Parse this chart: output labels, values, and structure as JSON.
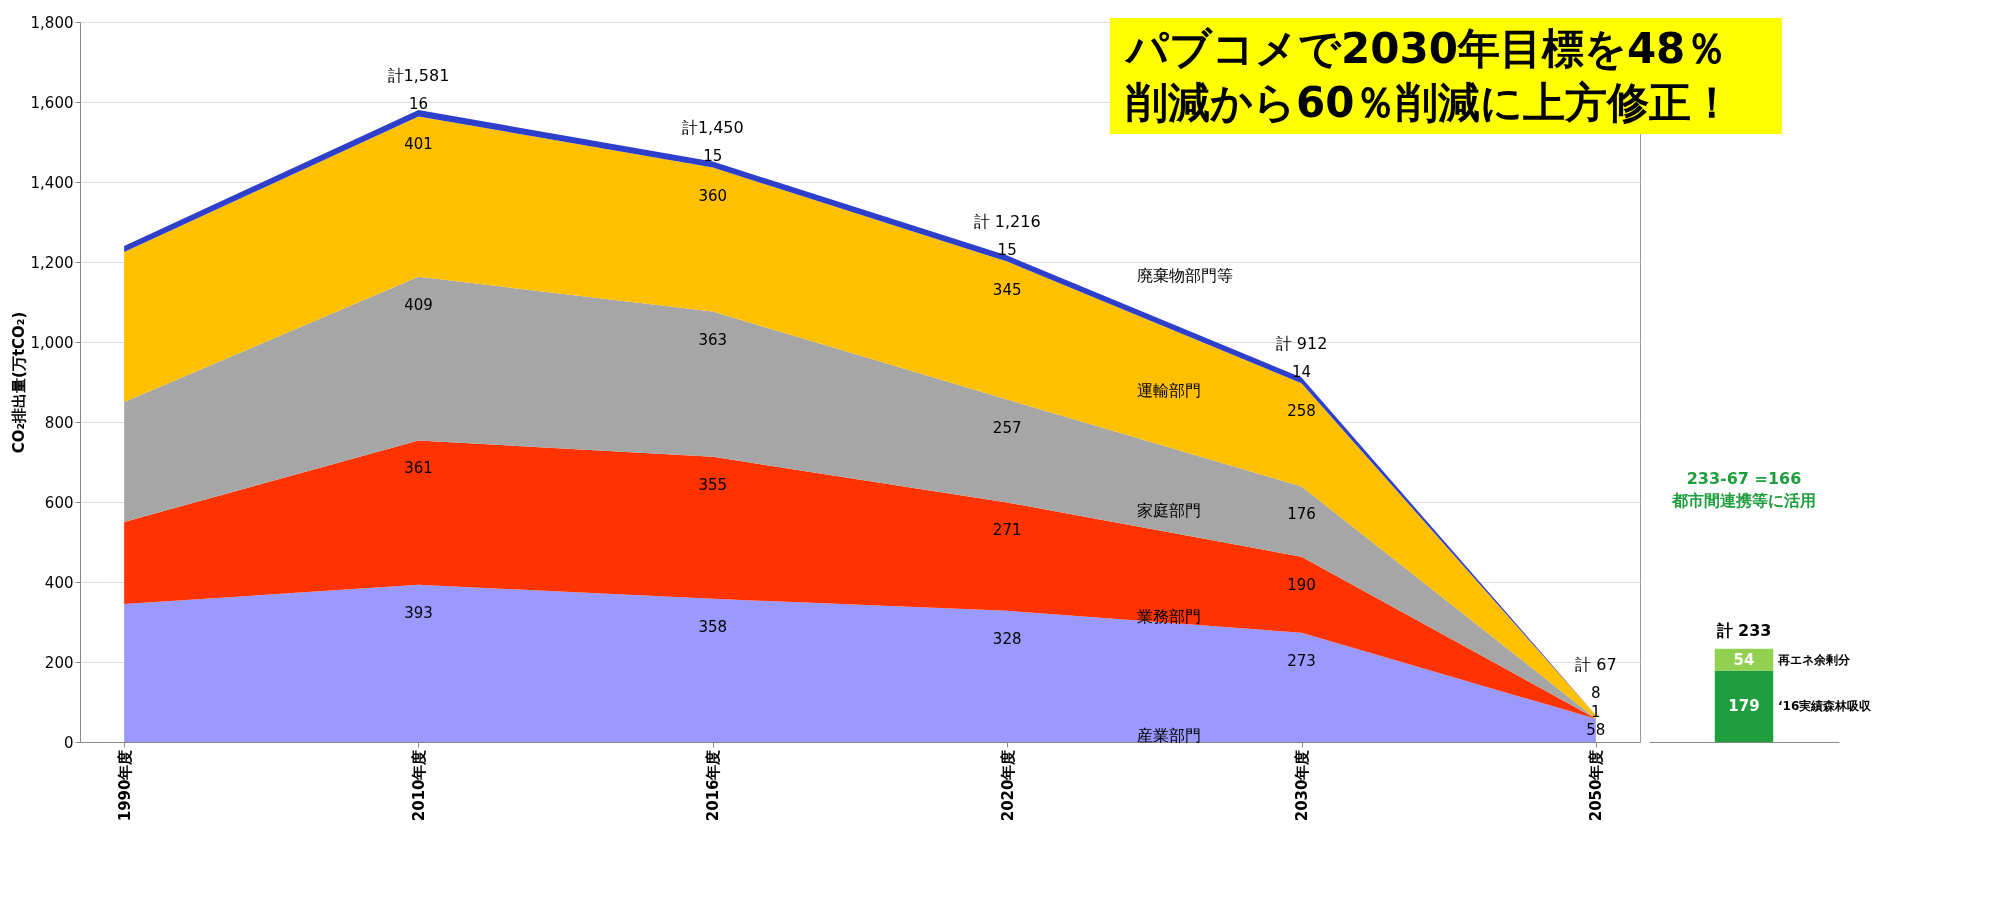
{
  "chart_data": [
    {
      "type": "area",
      "stacked": true,
      "ylabel": "CO₂排出量(万tCO₂)",
      "categories": [
        "1990年度",
        "2010年度",
        "2016年度",
        "2020年度",
        "2030年度",
        "2050年度"
      ],
      "ylim": [
        0,
        1800
      ],
      "yticks": [
        0,
        200,
        400,
        600,
        800,
        {
          "value": 1000,
          "label": "1,000"
        },
        {
          "value": 1200,
          "label": "1,200"
        },
        {
          "value": 1400,
          "label": "1,400"
        },
        {
          "value": 1600,
          "label": "1,600"
        },
        {
          "value": 1800,
          "label": "1,800"
        }
      ],
      "grid": "y",
      "series": [
        {
          "name": "産業部門",
          "color": "#9999ff",
          "values": [
            345,
            393,
            358,
            328,
            273,
            58
          ],
          "value_labels": [
            null,
            "393",
            "358",
            "328",
            "273",
            "58"
          ]
        },
        {
          "name": "業務部門",
          "color": "#ff3300",
          "values": [
            205,
            361,
            355,
            271,
            190,
            1
          ],
          "value_labels": [
            null,
            "361",
            "355",
            "271",
            "190",
            "1"
          ]
        },
        {
          "name": "家庭部門",
          "color": "#a6a6a6",
          "values": [
            300,
            409,
            363,
            257,
            176,
            0
          ],
          "value_labels": [
            null,
            "409",
            "363",
            "257",
            "176",
            null
          ]
        },
        {
          "name": "運輸部門",
          "color": "#ffc000",
          "values": [
            375,
            401,
            360,
            345,
            258,
            8
          ],
          "value_labels": [
            null,
            "401",
            "360",
            "345",
            "258",
            "8"
          ]
        },
        {
          "name": "廃棄物部門等",
          "color": "#2e3fcc",
          "values": [
            15,
            16,
            15,
            15,
            14,
            0
          ],
          "value_labels": [
            null,
            "16",
            "15",
            "15",
            "14",
            null
          ]
        }
      ],
      "totals": [
        null,
        "計1,581",
        "計1,450",
        "計 1,216",
        "計 912",
        "計 67"
      ],
      "annotations": [
        "パブコメで2030年目標を48％削減から60％削減に上方修正！"
      ]
    },
    {
      "type": "bar",
      "stacked": true,
      "categories": [
        null
      ],
      "ylim": [
        0,
        1800
      ],
      "tick_labels": false,
      "data_labels": true,
      "series": [
        {
          "name": "‘16実績森林吸収",
          "color": "#1e9e3c",
          "values": [
            179
          ]
        },
        {
          "name": "再エネ余剰分",
          "color": "#92d050",
          "values": [
            54
          ]
        }
      ],
      "totals": [
        "計 233"
      ],
      "annotations": [
        "233-67 =166",
        "都市間連携等に活用"
      ]
    }
  ]
}
